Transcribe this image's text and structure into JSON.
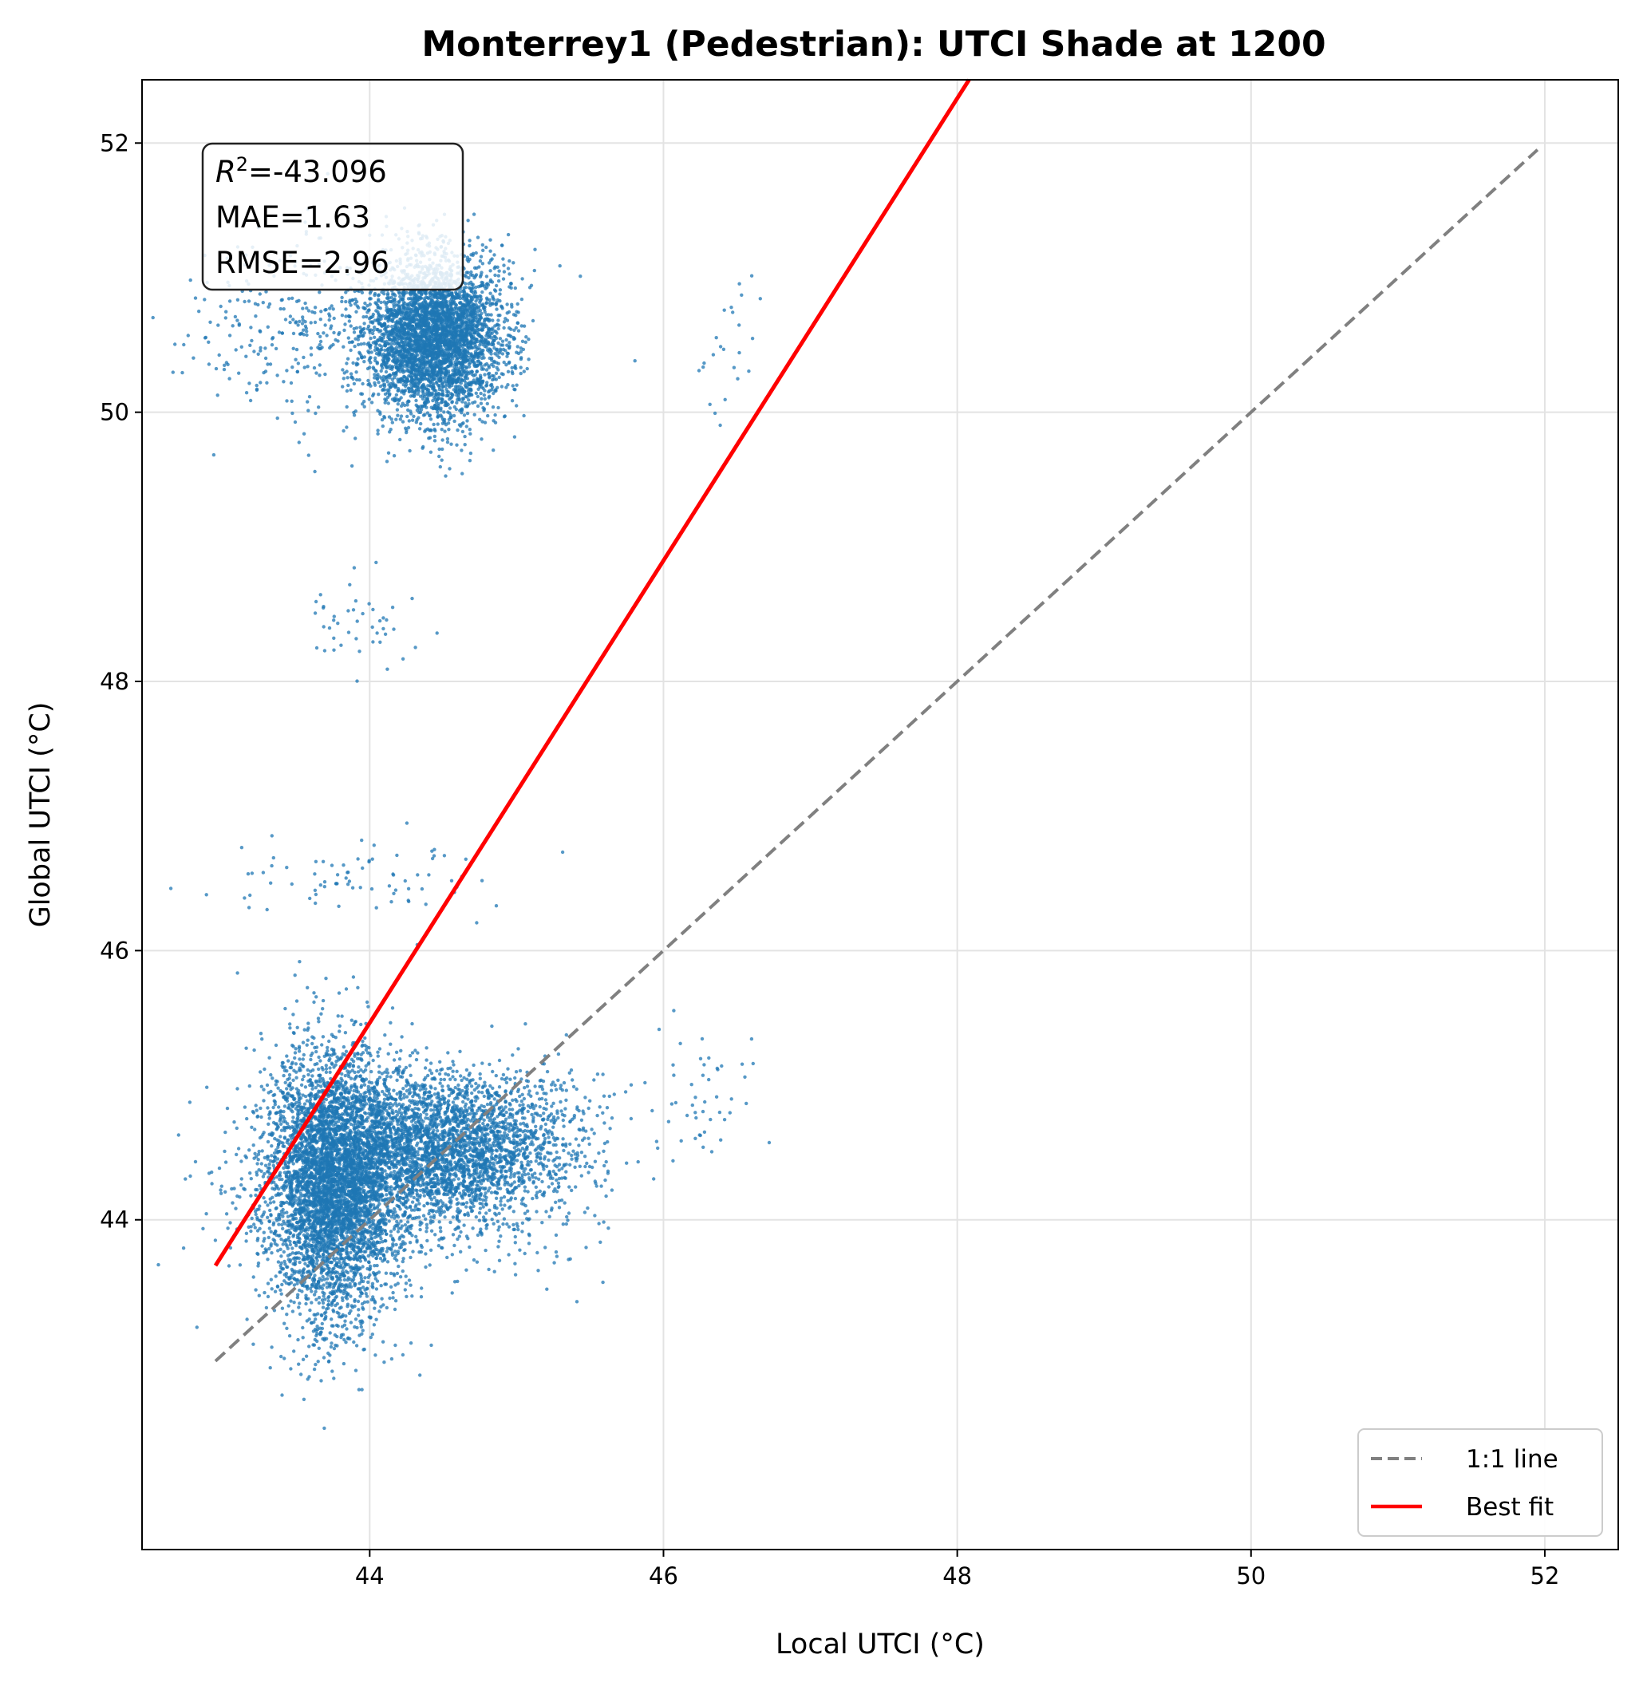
{
  "chart_data": {
    "type": "scatter",
    "title": "Monterrey1 (Pedestrian): UTCI Shade at 1200",
    "xlabel": "Local UTCI (°C)",
    "ylabel": "Global UTCI (°C)",
    "xlim": [
      42.45,
      52.5
    ],
    "ylim": [
      41.55,
      52.47
    ],
    "xticks": [
      44,
      46,
      48,
      50,
      52
    ],
    "yticks": [
      44,
      46,
      48,
      50,
      52
    ],
    "grid": true,
    "stats": {
      "r2_label": "R",
      "r2_sup": "2",
      "r2_value": "=-43.096",
      "mae": "MAE=1.63",
      "rmse": "RMSE=2.96"
    },
    "legend": {
      "position": "lower-right",
      "entries": [
        {
          "name": "1:1 line",
          "style": "dashed",
          "color": "#808080"
        },
        {
          "name": "Best fit",
          "style": "solid",
          "color": "#ff0000"
        }
      ]
    },
    "series": [
      {
        "name": "1:1 line",
        "kind": "line",
        "x": [
          42.95,
          51.95
        ],
        "y": [
          42.95,
          51.95
        ],
        "color": "#808080",
        "dashed": true
      },
      {
        "name": "Best fit",
        "kind": "line",
        "x": [
          42.95,
          48.08
        ],
        "y": [
          43.66,
          52.47
        ],
        "color": "#ff0000",
        "dashed": false
      }
    ],
    "point_color": "#1f77b4",
    "point_clusters": [
      {
        "cx": 43.75,
        "cy": 44.25,
        "sx": 0.22,
        "sy": 0.5,
        "count": 4500
      },
      {
        "cx": 44.5,
        "cy": 44.55,
        "sx": 0.45,
        "sy": 0.28,
        "count": 3200
      },
      {
        "cx": 44.2,
        "cy": 44.25,
        "sx": 0.6,
        "sy": 0.35,
        "count": 700
      },
      {
        "cx": 44.45,
        "cy": 50.55,
        "sx": 0.23,
        "sy": 0.3,
        "count": 3800
      },
      {
        "cx": 43.8,
        "cy": 50.6,
        "sx": 0.5,
        "sy": 0.35,
        "count": 450
      },
      {
        "cx": 43.9,
        "cy": 46.5,
        "sx": 0.55,
        "sy": 0.15,
        "count": 80
      },
      {
        "cx": 44.0,
        "cy": 48.45,
        "sx": 0.25,
        "sy": 0.18,
        "count": 45
      },
      {
        "cx": 46.25,
        "cy": 44.9,
        "sx": 0.15,
        "sy": 0.25,
        "count": 45
      },
      {
        "cx": 46.35,
        "cy": 50.5,
        "sx": 0.15,
        "sy": 0.25,
        "count": 25
      }
    ]
  }
}
